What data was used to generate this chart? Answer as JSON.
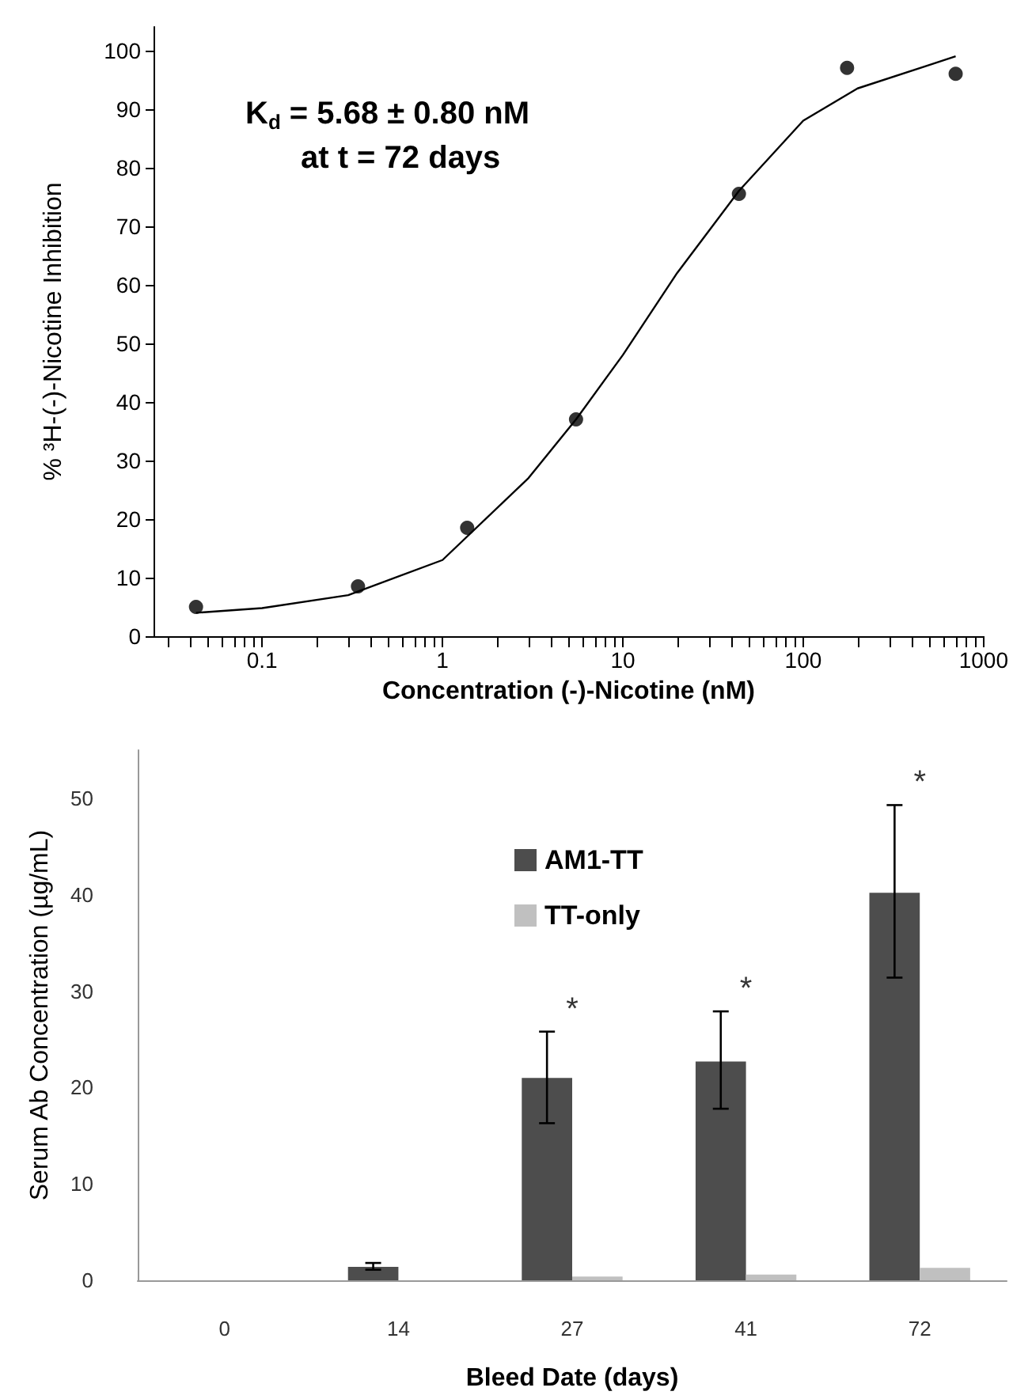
{
  "chart_data": [
    {
      "type": "scatter",
      "ylabel": "% ³H-(-)-Nicotine Inhibition",
      "xlabel": "Concentration (-)-Nicotine (nM)",
      "annotations": [
        "K$_{d}$ = 5.68 ± 0.80 nM",
        "at t = 72 days"
      ],
      "log": "x",
      "xlim": [
        0.025,
        1000
      ],
      "ylim": [
        0,
        104
      ],
      "xticks": [
        {
          "value": 0.03,
          "label": null
        },
        {
          "value": 0.04,
          "label": null
        },
        {
          "value": 0.05,
          "label": null
        },
        {
          "value": 0.06,
          "label": null
        },
        {
          "value": 0.07,
          "label": null
        },
        {
          "value": 0.08,
          "label": null
        },
        {
          "value": 0.09,
          "label": null
        },
        0.1,
        {
          "value": 0.2,
          "label": null
        },
        {
          "value": 0.3,
          "label": null
        },
        {
          "value": 0.4,
          "label": null
        },
        {
          "value": 0.5,
          "label": null
        },
        {
          "value": 0.6,
          "label": null
        },
        {
          "value": 0.7,
          "label": null
        },
        {
          "value": 0.8,
          "label": null
        },
        {
          "value": 0.9,
          "label": null
        },
        1,
        {
          "value": 2,
          "label": null
        },
        {
          "value": 3,
          "label": null
        },
        {
          "value": 4,
          "label": null
        },
        {
          "value": 5,
          "label": null
        },
        {
          "value": 6,
          "label": null
        },
        {
          "value": 7,
          "label": null
        },
        {
          "value": 8,
          "label": null
        },
        {
          "value": 9,
          "label": null
        },
        10,
        {
          "value": 20,
          "label": null
        },
        {
          "value": 30,
          "label": null
        },
        {
          "value": 40,
          "label": null
        },
        {
          "value": 50,
          "label": null
        },
        {
          "value": 60,
          "label": null
        },
        {
          "value": 70,
          "label": null
        },
        {
          "value": 80,
          "label": null
        },
        {
          "value": 90,
          "label": null
        },
        100,
        {
          "value": 200,
          "label": null
        },
        {
          "value": 300,
          "label": null
        },
        {
          "value": 400,
          "label": null
        },
        {
          "value": 500,
          "label": null
        },
        {
          "value": 600,
          "label": null
        },
        {
          "value": 700,
          "label": null
        },
        {
          "value": 800,
          "label": null
        },
        {
          "value": 900,
          "label": null
        },
        1000
      ],
      "yticks": [
        0,
        10,
        20,
        30,
        40,
        50,
        60,
        70,
        80,
        90,
        100
      ],
      "grid": false,
      "legend": false,
      "series": [
        {
          "type": "scatter",
          "marker": "circle",
          "color": "#000000",
          "x": [
            0.043,
            0.34,
            1.37,
            5.5,
            44,
            175,
            700
          ],
          "values": [
            5,
            8.5,
            18.5,
            37,
            75.5,
            97,
            96
          ]
        },
        {
          "type": "line",
          "marker": "none",
          "line_style": "solid",
          "color": "#000000",
          "x": [
            0.043,
            0.1,
            0.3,
            1,
            3,
            5.5,
            10,
            20,
            44,
            100,
            200,
            500,
            700
          ],
          "values": [
            4,
            4.8,
            7,
            13,
            27,
            37,
            48,
            62,
            76,
            88,
            93.5,
            97.5,
            99
          ]
        }
      ]
    },
    {
      "type": "bar",
      "ylabel": "Serum Ab Concentration (µg/mL)",
      "xlabel": "Bleed Date (days)",
      "categories": [
        "0",
        "14",
        "27",
        "41",
        "72"
      ],
      "ylim": [
        0,
        55
      ],
      "yticks": [
        0,
        10,
        20,
        30,
        40,
        50
      ],
      "grid": false,
      "legend": "top",
      "annotations": [
        "*",
        "*",
        "*"
      ],
      "series": [
        {
          "name": "AM1-TT",
          "color": "#4d4d4d",
          "values": [
            0,
            1.4,
            21,
            22.7,
            40.2
          ],
          "errors": [
            null,
            [
              1.1,
              1.8
            ],
            [
              16.3,
              25.8
            ],
            [
              17.8,
              27.9
            ],
            [
              31.4,
              49.3
            ]
          ]
        },
        {
          "name": "TT-only",
          "color": "#c0c0c0",
          "values": [
            0,
            0,
            0.4,
            0.6,
            1.3
          ]
        }
      ]
    }
  ]
}
